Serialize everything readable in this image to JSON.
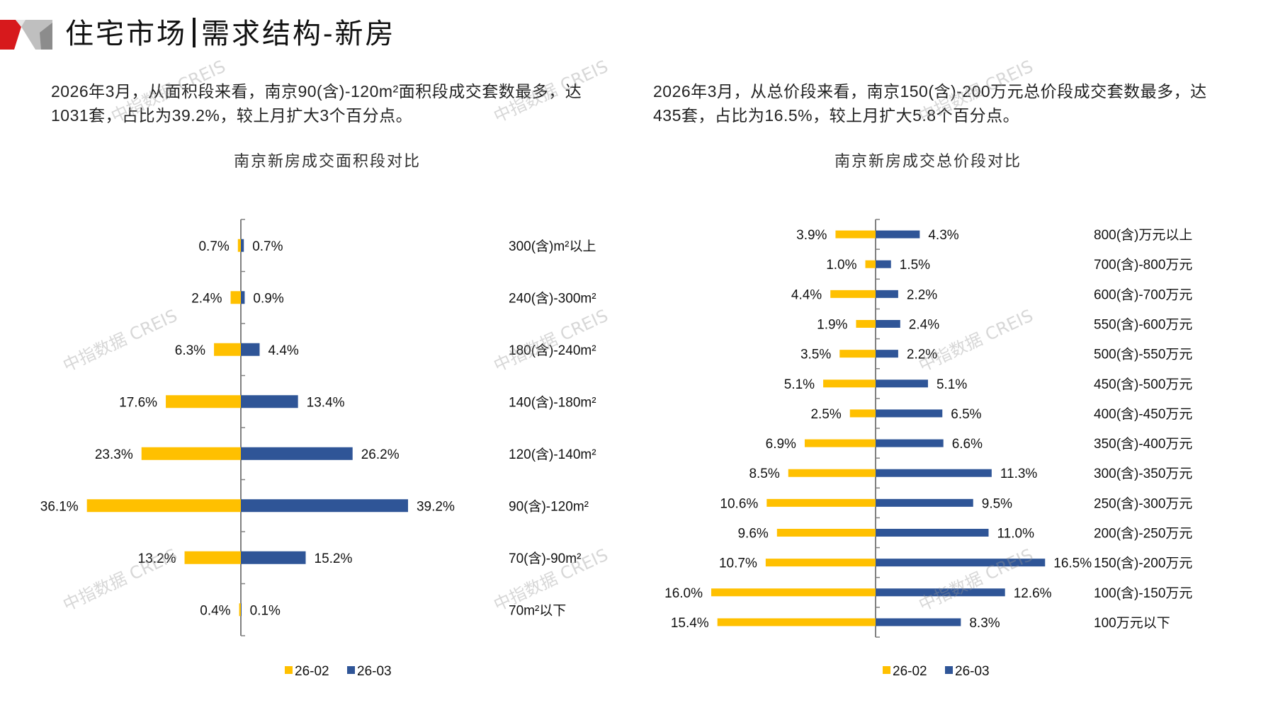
{
  "header": {
    "title_part1": "住宅市场",
    "title_part2": "需求结构-新房"
  },
  "descriptions": {
    "left": "2026年3月，从面积段来看，南京90(含)-120m²面积段成交套数最多，达1031套，占比为39.2%，较上月扩大3个百分点。",
    "right": "2026年3月，从总价段来看，南京150(含)-200万元总价段成交套数最多，达435套，占比为16.5%，较上月扩大5.8个百分点。"
  },
  "watermark_text": "中指数据 CREIS",
  "colors": {
    "series_prev": "#FFC000",
    "series_curr": "#2F5597",
    "axis": "#808080",
    "logo_red": "#D7191C",
    "logo_gray": "#BFBFBF",
    "logo_dark": "#8C8C8C"
  },
  "chart_data": [
    {
      "type": "bar",
      "orientation": "horizontal-butterfly",
      "title": "南京新房成交面积段对比",
      "categories": [
        "300(含)m²以上",
        "240(含)-300m²",
        "180(含)-240m²",
        "140(含)-180m²",
        "120(含)-140m²",
        "90(含)-120m²",
        "70(含)-90m²",
        "70m²以下"
      ],
      "series": [
        {
          "name": "26-02",
          "side": "left",
          "values": [
            0.7,
            2.4,
            6.3,
            17.6,
            23.3,
            36.1,
            13.2,
            0.4
          ]
        },
        {
          "name": "26-03",
          "side": "right",
          "values": [
            0.7,
            0.9,
            4.4,
            13.4,
            26.2,
            39.2,
            15.2,
            0.1
          ]
        }
      ],
      "value_format": "percent",
      "data_labels": {
        "26-02": [
          "0.7%",
          "2.4%",
          "6.3%",
          "17.6%",
          "23.3%",
          "36.1%",
          "13.2%",
          "0.4%"
        ],
        "26-03": [
          "0.7%",
          "0.9%",
          "4.4%",
          "13.4%",
          "26.2%",
          "39.2%",
          "15.2%",
          "0.1%"
        ]
      },
      "xlabel": "",
      "ylabel": "",
      "legend": [
        "26-02",
        "26-03"
      ],
      "legend_position": "bottom",
      "grid": false
    },
    {
      "type": "bar",
      "orientation": "horizontal-butterfly",
      "title": "南京新房成交总价段对比",
      "categories": [
        "800(含)万元以上",
        "700(含)-800万元",
        "600(含)-700万元",
        "550(含)-600万元",
        "500(含)-550万元",
        "450(含)-500万元",
        "400(含)-450万元",
        "350(含)-400万元",
        "300(含)-350万元",
        "250(含)-300万元",
        "200(含)-250万元",
        "150(含)-200万元",
        "100(含)-150万元",
        "100万元以下"
      ],
      "series": [
        {
          "name": "26-02",
          "side": "left",
          "values": [
            3.9,
            1.0,
            4.4,
            1.9,
            3.5,
            5.1,
            2.5,
            6.9,
            8.5,
            10.6,
            9.6,
            10.7,
            16.0,
            15.4
          ]
        },
        {
          "name": "26-03",
          "side": "right",
          "values": [
            4.3,
            1.5,
            2.2,
            2.4,
            2.2,
            5.1,
            6.5,
            6.6,
            11.3,
            9.5,
            11.0,
            16.5,
            12.6,
            8.3
          ]
        }
      ],
      "value_format": "percent",
      "data_labels": {
        "26-02": [
          "3.9%",
          "1.0%",
          "4.4%",
          "1.9%",
          "3.5%",
          "5.1%",
          "2.5%",
          "6.9%",
          "8.5%",
          "10.6%",
          "9.6%",
          "10.7%",
          "16.0%",
          "15.4%"
        ],
        "26-03": [
          "4.3%",
          "1.5%",
          "2.2%",
          "2.4%",
          "2.2%",
          "5.1%",
          "6.5%",
          "6.6%",
          "11.3%",
          "9.5%",
          "11.0%",
          "16.5%",
          "12.6%",
          "8.3%"
        ]
      },
      "xlabel": "",
      "ylabel": "",
      "legend": [
        "26-02",
        "26-03"
      ],
      "legend_position": "bottom",
      "grid": false
    }
  ]
}
